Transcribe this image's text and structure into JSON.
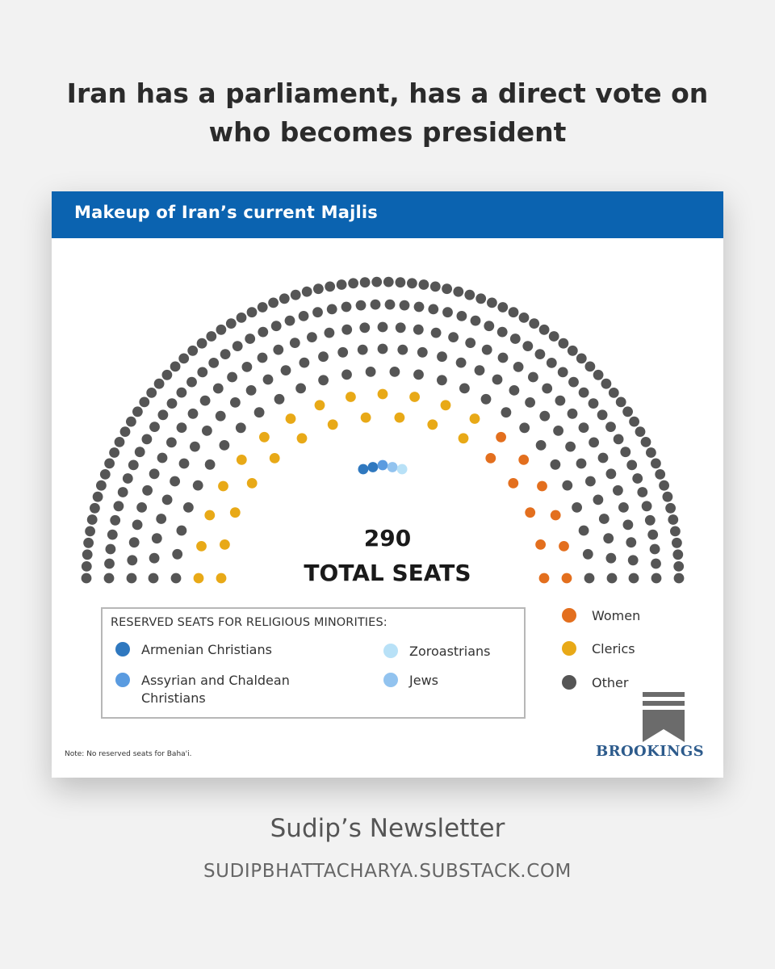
{
  "headline": "Iran has a parliament, has a direct vote on who becomes president",
  "chart_data": {
    "type": "parliament",
    "title": "Makeup of Iran’s current Majlis",
    "total_seats": 290,
    "total_number_text": "290",
    "total_label_text": "TOTAL SEATS",
    "series": [
      {
        "name": "Armenian Christians",
        "values": [
          2
        ],
        "color": "#2f78bf"
      },
      {
        "name": "Assyrian and Chaldean Christians",
        "values": [
          1
        ],
        "color": "#5a9be0"
      },
      {
        "name": "Zoroastrians",
        "values": [
          1
        ],
        "color": "#b8e1f7"
      },
      {
        "name": "Jews",
        "values": [
          1
        ],
        "color": "#92c3ef"
      },
      {
        "name": "Women",
        "values": [
          17
        ],
        "color": "#e36f1e"
      },
      {
        "name": "Clerics",
        "values": [
          31
        ],
        "color": "#e8a917"
      },
      {
        "name": "Other",
        "values": [
          237
        ],
        "color": "#555555"
      }
    ],
    "legend": {
      "reserved_title": "RESERVED SEATS FOR RELIGIOUS MINORITIES:",
      "reserved_items": [
        {
          "label": "Armenian Christians",
          "color": "#2f78bf"
        },
        {
          "label": "Assyrian and Chaldean Christians",
          "color": "#5a9be0"
        },
        {
          "label": "Zoroastrians",
          "color": "#b8e1f7"
        },
        {
          "label": "Jews",
          "color": "#92c3ef"
        }
      ],
      "other_items": [
        {
          "label": "Women",
          "color": "#e36f1e"
        },
        {
          "label": "Clerics",
          "color": "#e8a917"
        },
        {
          "label": "Other",
          "color": "#555555"
        }
      ]
    },
    "note": "Note: No reserved seats for Baha'i.",
    "source": "BROOKINGS"
  },
  "footer": {
    "newsletter_name": "Sudip’s Newsletter",
    "url": "SUDIPBHATTACHARYA.SUBSTACK.COM"
  }
}
